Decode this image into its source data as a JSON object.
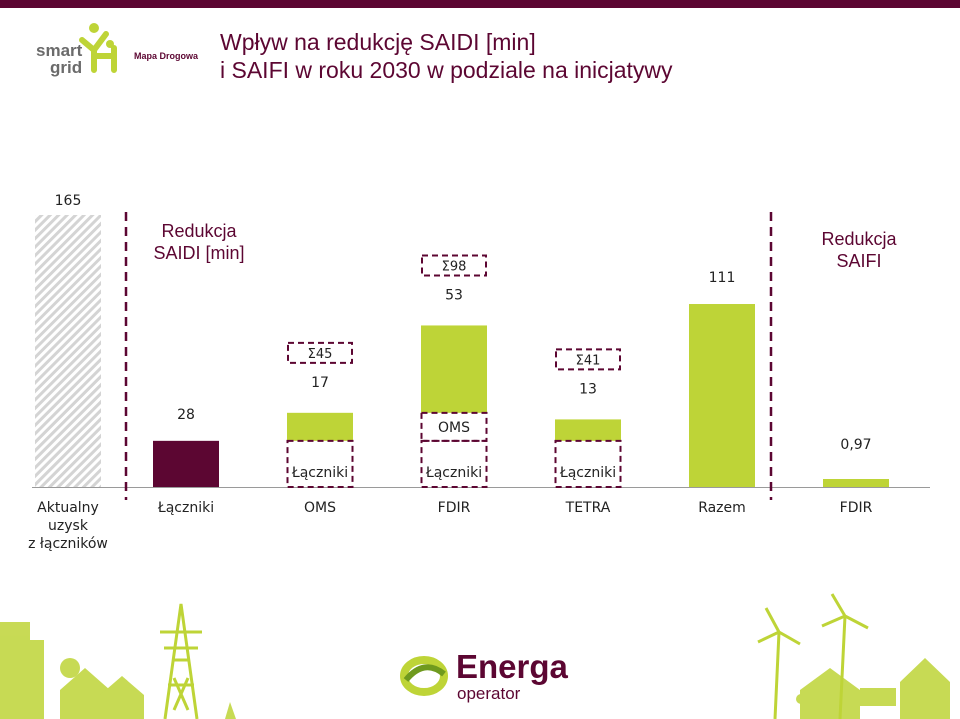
{
  "header": {
    "title_line1": "Wpływ na redukcję SAIDI [min]",
    "title_line2": "i SAIFI w roku 2030 w podziale na inicjatywy"
  },
  "logo": {
    "smart": "smart",
    "grid": "grid",
    "mapa": "Mapa Drogowa"
  },
  "brand": {
    "name": "Energa",
    "sub": "operator"
  },
  "colors": {
    "accent": "#5c0632",
    "green": "#bed437",
    "hatch": "#d4d4d4"
  },
  "chart_data": {
    "type": "bar",
    "variant": "waterfall",
    "ylim": [
      0,
      165
    ],
    "categories": [
      "Aktualny uzysk z łączników",
      "Łączniki",
      "OMS",
      "FDIR",
      "TETRA",
      "Razem",
      "FDIR"
    ],
    "category_lines": [
      [
        "Aktualny",
        "uzysk",
        "z łączników"
      ],
      [
        "Łączniki"
      ],
      [
        "OMS"
      ],
      [
        "FDIR"
      ],
      [
        "TETRA"
      ],
      [
        "Razem"
      ],
      [
        "FDIR"
      ]
    ],
    "sections": [
      {
        "label_lines": [
          "Redukcja",
          "SAIDI [min]"
        ]
      },
      {
        "label_lines": [
          "Redukcja",
          "SAIFI"
        ]
      }
    ],
    "bars": [
      {
        "category": "Aktualny uzysk z łączników",
        "start": 0,
        "value": 165,
        "label": "165",
        "style": "hatched"
      },
      {
        "category": "Łączniki",
        "start": 0,
        "value": 28,
        "label": "28",
        "style": "maroon"
      },
      {
        "category": "OMS",
        "start": 28,
        "value": 17,
        "label": "17",
        "style": "green",
        "sum_label": "Σ45",
        "stack": [
          {
            "label": "Łączniki",
            "value": 28
          }
        ]
      },
      {
        "category": "FDIR",
        "start": 45,
        "value": 53,
        "label": "53",
        "style": "green",
        "sum_label": "Σ98",
        "stack": [
          {
            "label": "Łączniki",
            "value": 28
          },
          {
            "label": "OMS",
            "value": 17
          }
        ]
      },
      {
        "category": "TETRA",
        "start": 28,
        "value": 13,
        "label": "13",
        "style": "green",
        "sum_label": "Σ41",
        "stack": [
          {
            "label": "Łączniki",
            "value": 28
          }
        ]
      },
      {
        "category": "Razem",
        "start": 0,
        "value": 111,
        "label": "111",
        "style": "green"
      },
      {
        "category": "FDIR",
        "start": 0,
        "value": 0.97,
        "label": "0,97",
        "style": "green",
        "axis": "SAIFI"
      }
    ]
  }
}
